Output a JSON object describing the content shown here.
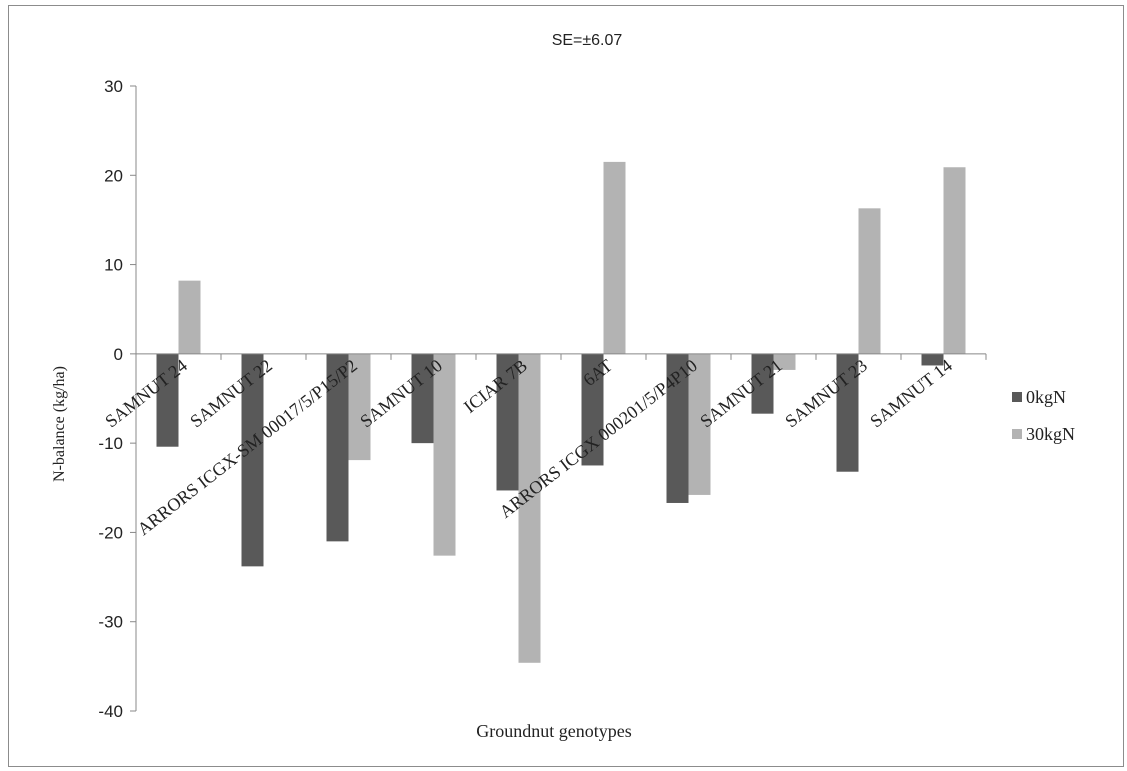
{
  "chart_data": {
    "type": "bar",
    "title": "SE=±6.07",
    "xlabel": "Groundnut genotypes",
    "ylabel": "N-balance (kg/ha)",
    "ylim": [
      -40,
      30
    ],
    "yticks": [
      -40,
      -30,
      -20,
      -10,
      0,
      10,
      20,
      30
    ],
    "ytick_labels": [
      "-40",
      "-30",
      "-20",
      "-10",
      "0",
      "10",
      "20",
      "30"
    ],
    "grid": false,
    "legend_position": "right",
    "categories": [
      "SAMNUT 24",
      "SAMNUT 22",
      "ARRORS ICGX-SM 00017/5/P15/P2",
      "SAMNUT 10",
      "ICIAR 7B",
      "6AT",
      "ARRORS ICGX 000201/5/P4P10",
      "SAMNUT 21",
      "SAMNUT 23",
      "SAMNUT 14"
    ],
    "series": [
      {
        "name": "0kgN",
        "color": "#595959",
        "values": [
          -10.4,
          -23.8,
          -21.0,
          -10.0,
          -15.3,
          -12.5,
          -16.7,
          -6.7,
          -13.2,
          -1.3
        ]
      },
      {
        "name": "30kgN",
        "color": "#b3b3b3",
        "values": [
          8.2,
          0,
          -11.9,
          -22.6,
          -34.6,
          21.5,
          -15.8,
          -1.8,
          16.3,
          20.9
        ]
      }
    ]
  }
}
